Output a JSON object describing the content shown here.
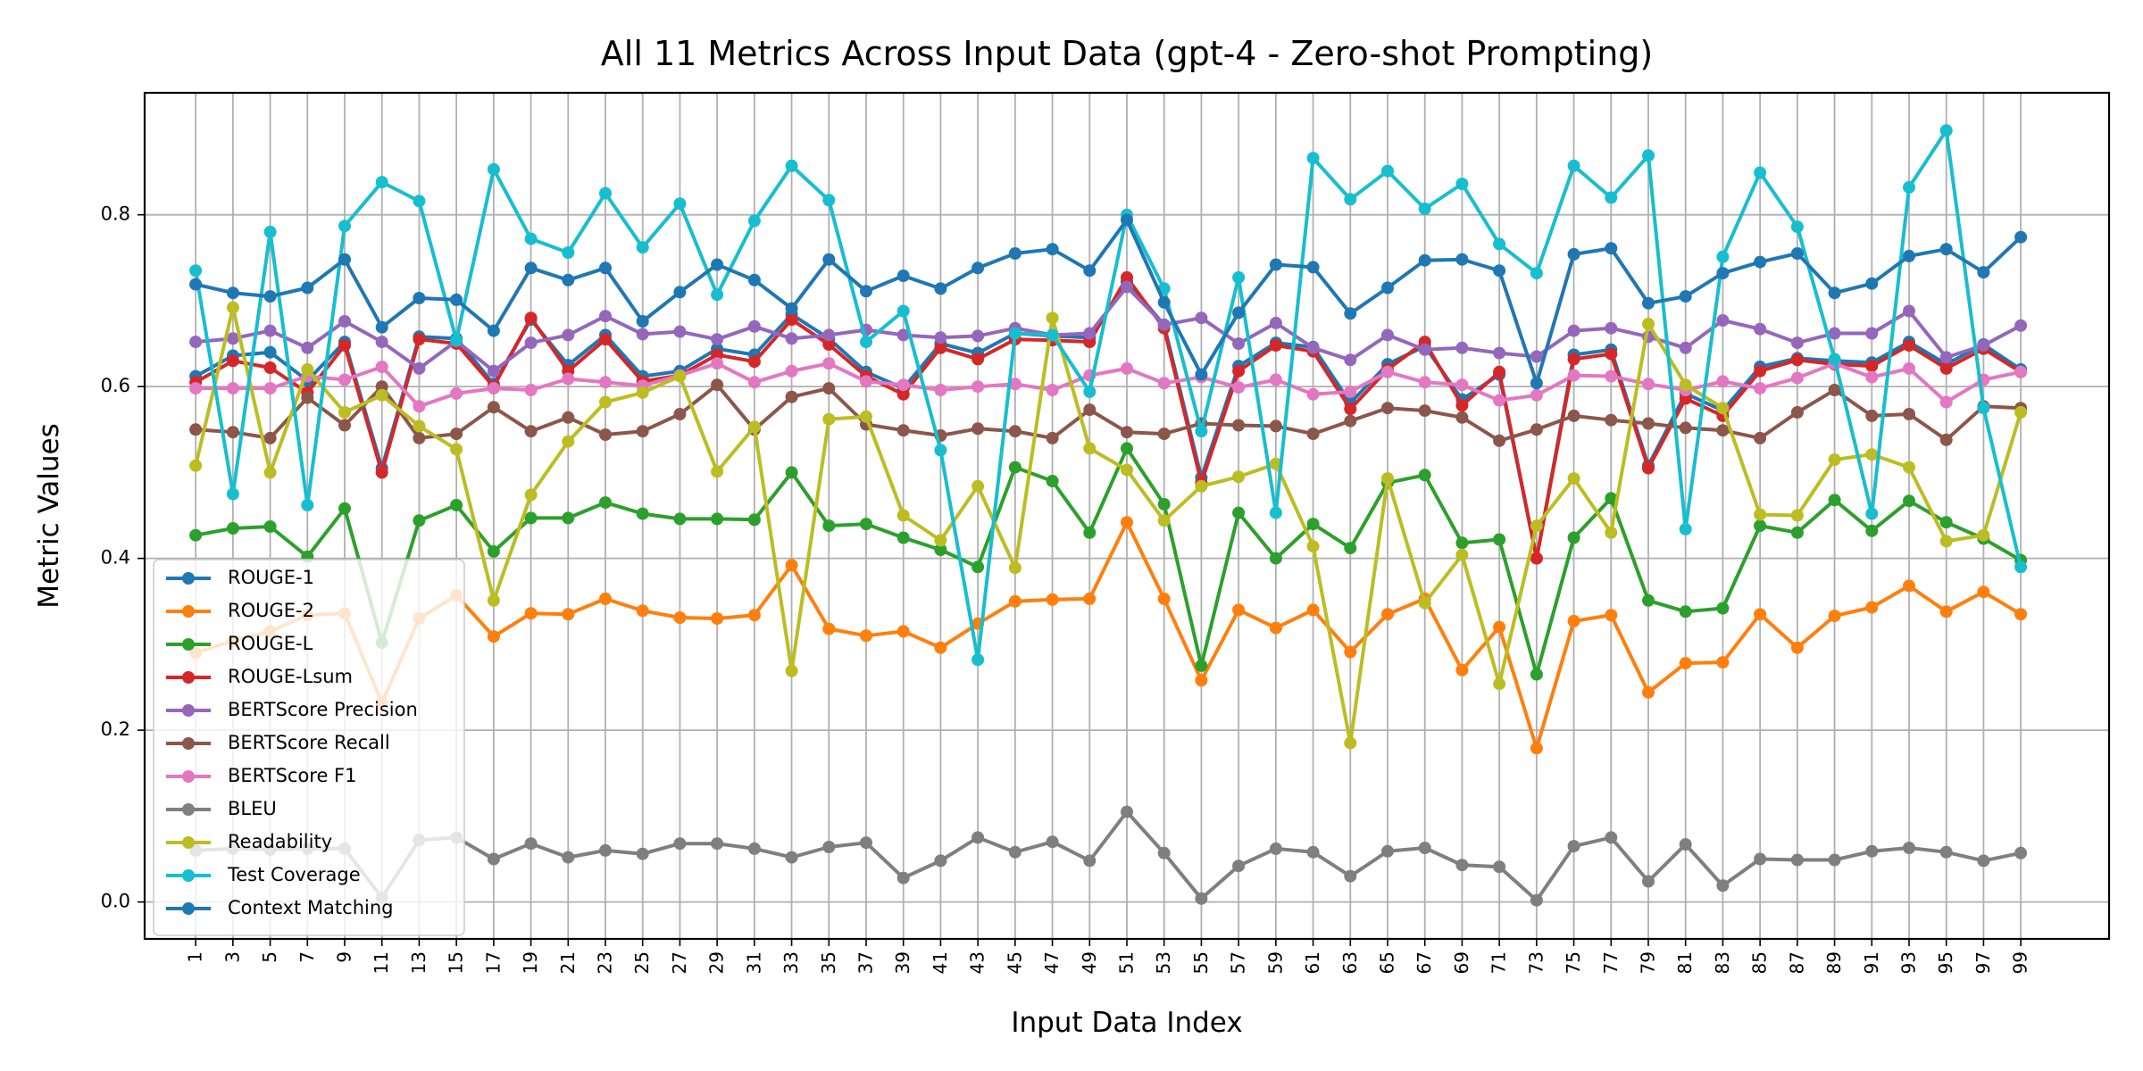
{
  "chart_data": {
    "type": "line",
    "title": "All 11 Metrics Across Input Data (gpt-4 - Zero-shot Prompting)",
    "xlabel": "Input Data Index",
    "ylabel": "Metric Values",
    "xlim": [
      -1.37,
      51.37
    ],
    "ylim": [
      -0.043,
      0.942
    ],
    "yticks": [
      0.0,
      0.2,
      0.4,
      0.6,
      0.8
    ],
    "ytick_labels": [
      "0.0",
      "0.2",
      "0.4",
      "0.6",
      "0.8"
    ],
    "grid": true,
    "legend_position": "lower-left",
    "categories": [
      "1",
      "3",
      "5",
      "7",
      "9",
      "11",
      "13",
      "15",
      "17",
      "19",
      "21",
      "23",
      "25",
      "27",
      "29",
      "31",
      "33",
      "35",
      "37",
      "39",
      "41",
      "43",
      "45",
      "47",
      "49",
      "51",
      "53",
      "55",
      "57",
      "59",
      "61",
      "63",
      "65",
      "67",
      "69",
      "71",
      "73",
      "75",
      "77",
      "79",
      "81",
      "83",
      "85",
      "87",
      "89",
      "91",
      "93",
      "95",
      "97",
      "99"
    ],
    "series": [
      {
        "name": "ROUGE-1",
        "color": "#1f77b4",
        "values": [
          0.612,
          0.636,
          0.64,
          0.607,
          0.652,
          0.505,
          0.658,
          0.656,
          0.603,
          0.678,
          0.625,
          0.66,
          0.612,
          0.618,
          0.644,
          0.637,
          0.684,
          0.656,
          0.617,
          0.598,
          0.65,
          0.639,
          0.662,
          0.659,
          0.657,
          0.722,
          0.672,
          0.494,
          0.624,
          0.651,
          0.646,
          0.581,
          0.626,
          0.647,
          0.585,
          0.614,
          0.4,
          0.637,
          0.643,
          0.508,
          0.592,
          0.572,
          0.623,
          0.633,
          0.63,
          0.628,
          0.652,
          0.626,
          0.649,
          0.62
        ]
      },
      {
        "name": "ROUGE-2",
        "color": "#ff7f0e",
        "values": [
          0.29,
          0.304,
          0.315,
          0.334,
          0.336,
          0.232,
          0.33,
          0.357,
          0.309,
          0.336,
          0.335,
          0.353,
          0.339,
          0.331,
          0.33,
          0.334,
          0.392,
          0.318,
          0.31,
          0.315,
          0.296,
          0.324,
          0.35,
          0.352,
          0.353,
          0.442,
          0.353,
          0.258,
          0.34,
          0.319,
          0.34,
          0.291,
          0.335,
          0.353,
          0.27,
          0.32,
          0.179,
          0.327,
          0.334,
          0.244,
          0.278,
          0.279,
          0.335,
          0.296,
          0.333,
          0.343,
          0.368,
          0.338,
          0.361,
          0.335
        ]
      },
      {
        "name": "ROUGE-L",
        "color": "#2ca02c",
        "values": [
          0.427,
          0.435,
          0.437,
          0.402,
          0.458,
          0.302,
          0.444,
          0.462,
          0.408,
          0.447,
          0.447,
          0.465,
          0.452,
          0.446,
          0.446,
          0.445,
          0.5,
          0.438,
          0.44,
          0.424,
          0.41,
          0.39,
          0.506,
          0.49,
          0.43,
          0.528,
          0.463,
          0.275,
          0.453,
          0.4,
          0.44,
          0.412,
          0.488,
          0.497,
          0.418,
          0.422,
          0.265,
          0.424,
          0.47,
          0.351,
          0.338,
          0.342,
          0.438,
          0.43,
          0.468,
          0.432,
          0.467,
          0.442,
          0.423,
          0.398
        ]
      },
      {
        "name": "ROUGE-Lsum",
        "color": "#d62728",
        "values": [
          0.605,
          0.63,
          0.622,
          0.593,
          0.648,
          0.5,
          0.655,
          0.65,
          0.6,
          0.68,
          0.618,
          0.655,
          0.606,
          0.613,
          0.637,
          0.629,
          0.678,
          0.649,
          0.612,
          0.591,
          0.645,
          0.632,
          0.655,
          0.654,
          0.652,
          0.727,
          0.668,
          0.488,
          0.618,
          0.648,
          0.641,
          0.574,
          0.62,
          0.652,
          0.578,
          0.617,
          0.4,
          0.632,
          0.638,
          0.505,
          0.586,
          0.566,
          0.618,
          0.631,
          0.626,
          0.624,
          0.648,
          0.621,
          0.644,
          0.617
        ]
      },
      {
        "name": "BERTScore Precision",
        "color": "#9467bd",
        "values": [
          0.652,
          0.656,
          0.665,
          0.645,
          0.676,
          0.652,
          0.621,
          0.653,
          0.618,
          0.651,
          0.66,
          0.682,
          0.661,
          0.664,
          0.655,
          0.67,
          0.656,
          0.66,
          0.666,
          0.66,
          0.657,
          0.659,
          0.668,
          0.66,
          0.662,
          0.716,
          0.672,
          0.68,
          0.65,
          0.674,
          0.645,
          0.631,
          0.66,
          0.643,
          0.645,
          0.639,
          0.635,
          0.665,
          0.668,
          0.658,
          0.645,
          0.677,
          0.667,
          0.651,
          0.662,
          0.662,
          0.688,
          0.634,
          0.648,
          0.671
        ]
      },
      {
        "name": "BERTScore Recall",
        "color": "#8c564b",
        "values": [
          0.55,
          0.547,
          0.54,
          0.587,
          0.555,
          0.6,
          0.54,
          0.545,
          0.576,
          0.548,
          0.564,
          0.544,
          0.548,
          0.568,
          0.602,
          0.55,
          0.588,
          0.598,
          0.556,
          0.549,
          0.543,
          0.551,
          0.548,
          0.54,
          0.573,
          0.547,
          0.545,
          0.557,
          0.555,
          0.554,
          0.545,
          0.56,
          0.575,
          0.572,
          0.564,
          0.537,
          0.55,
          0.566,
          0.561,
          0.557,
          0.552,
          0.549,
          0.54,
          0.57,
          0.596,
          0.566,
          0.568,
          0.538,
          0.577,
          0.575
        ]
      },
      {
        "name": "BERTScore F1",
        "color": "#e377c2",
        "values": [
          0.598,
          0.598,
          0.598,
          0.612,
          0.608,
          0.623,
          0.577,
          0.592,
          0.598,
          0.596,
          0.609,
          0.605,
          0.601,
          0.613,
          0.627,
          0.605,
          0.618,
          0.627,
          0.606,
          0.602,
          0.596,
          0.6,
          0.603,
          0.596,
          0.613,
          0.621,
          0.604,
          0.611,
          0.599,
          0.608,
          0.591,
          0.594,
          0.617,
          0.605,
          0.602,
          0.584,
          0.59,
          0.613,
          0.612,
          0.603,
          0.596,
          0.606,
          0.598,
          0.61,
          0.627,
          0.611,
          0.621,
          0.582,
          0.608,
          0.617
        ]
      },
      {
        "name": "BLEU",
        "color": "#7f7f7f",
        "values": [
          0.06,
          0.062,
          0.061,
          0.062,
          0.062,
          0.005,
          0.072,
          0.075,
          0.05,
          0.068,
          0.052,
          0.06,
          0.056,
          0.068,
          0.068,
          0.062,
          0.052,
          0.064,
          0.069,
          0.028,
          0.048,
          0.075,
          0.058,
          0.07,
          0.048,
          0.105,
          0.057,
          0.004,
          0.042,
          0.062,
          0.058,
          0.03,
          0.059,
          0.063,
          0.043,
          0.041,
          0.002,
          0.065,
          0.075,
          0.024,
          0.067,
          0.019,
          0.05,
          0.049,
          0.049,
          0.059,
          0.063,
          0.058,
          0.048,
          0.057
        ]
      },
      {
        "name": "Readability",
        "color": "#bcbd22",
        "values": [
          0.508,
          0.692,
          0.5,
          0.62,
          0.57,
          0.59,
          0.554,
          0.527,
          0.351,
          0.474,
          0.536,
          0.582,
          0.593,
          0.612,
          0.501,
          0.553,
          0.269,
          0.562,
          0.565,
          0.45,
          0.421,
          0.484,
          0.389,
          0.68,
          0.528,
          0.503,
          0.444,
          0.484,
          0.495,
          0.51,
          0.414,
          0.185,
          0.493,
          0.348,
          0.404,
          0.254,
          0.438,
          0.493,
          0.43,
          0.673,
          0.602,
          0.575,
          0.451,
          0.45,
          0.515,
          0.521,
          0.506,
          0.42,
          0.427,
          0.57
        ]
      },
      {
        "name": "Test Coverage",
        "color": "#17becf",
        "values": [
          0.735,
          0.475,
          0.78,
          0.462,
          0.787,
          0.838,
          0.816,
          0.654,
          0.853,
          0.772,
          0.756,
          0.825,
          0.762,
          0.813,
          0.707,
          0.793,
          0.857,
          0.817,
          0.652,
          0.688,
          0.526,
          0.282,
          0.662,
          0.66,
          0.594,
          0.8,
          0.714,
          0.548,
          0.727,
          0.453,
          0.866,
          0.818,
          0.851,
          0.807,
          0.836,
          0.766,
          0.732,
          0.857,
          0.82,
          0.869,
          0.434,
          0.751,
          0.849,
          0.786,
          0.632,
          0.452,
          0.832,
          0.898,
          0.575,
          0.39
        ]
      },
      {
        "name": "Context Matching",
        "color": "#1f77b4",
        "values": [
          0.719,
          0.709,
          0.705,
          0.715,
          0.748,
          0.669,
          0.703,
          0.701,
          0.665,
          0.738,
          0.724,
          0.738,
          0.676,
          0.71,
          0.742,
          0.724,
          0.691,
          0.748,
          0.711,
          0.729,
          0.714,
          0.738,
          0.755,
          0.76,
          0.735,
          0.794,
          0.698,
          0.614,
          0.686,
          0.742,
          0.739,
          0.685,
          0.715,
          0.747,
          0.748,
          0.735,
          0.604,
          0.754,
          0.761,
          0.697,
          0.705,
          0.732,
          0.745,
          0.755,
          0.709,
          0.72,
          0.752,
          0.76,
          0.733,
          0.774
        ]
      }
    ]
  }
}
